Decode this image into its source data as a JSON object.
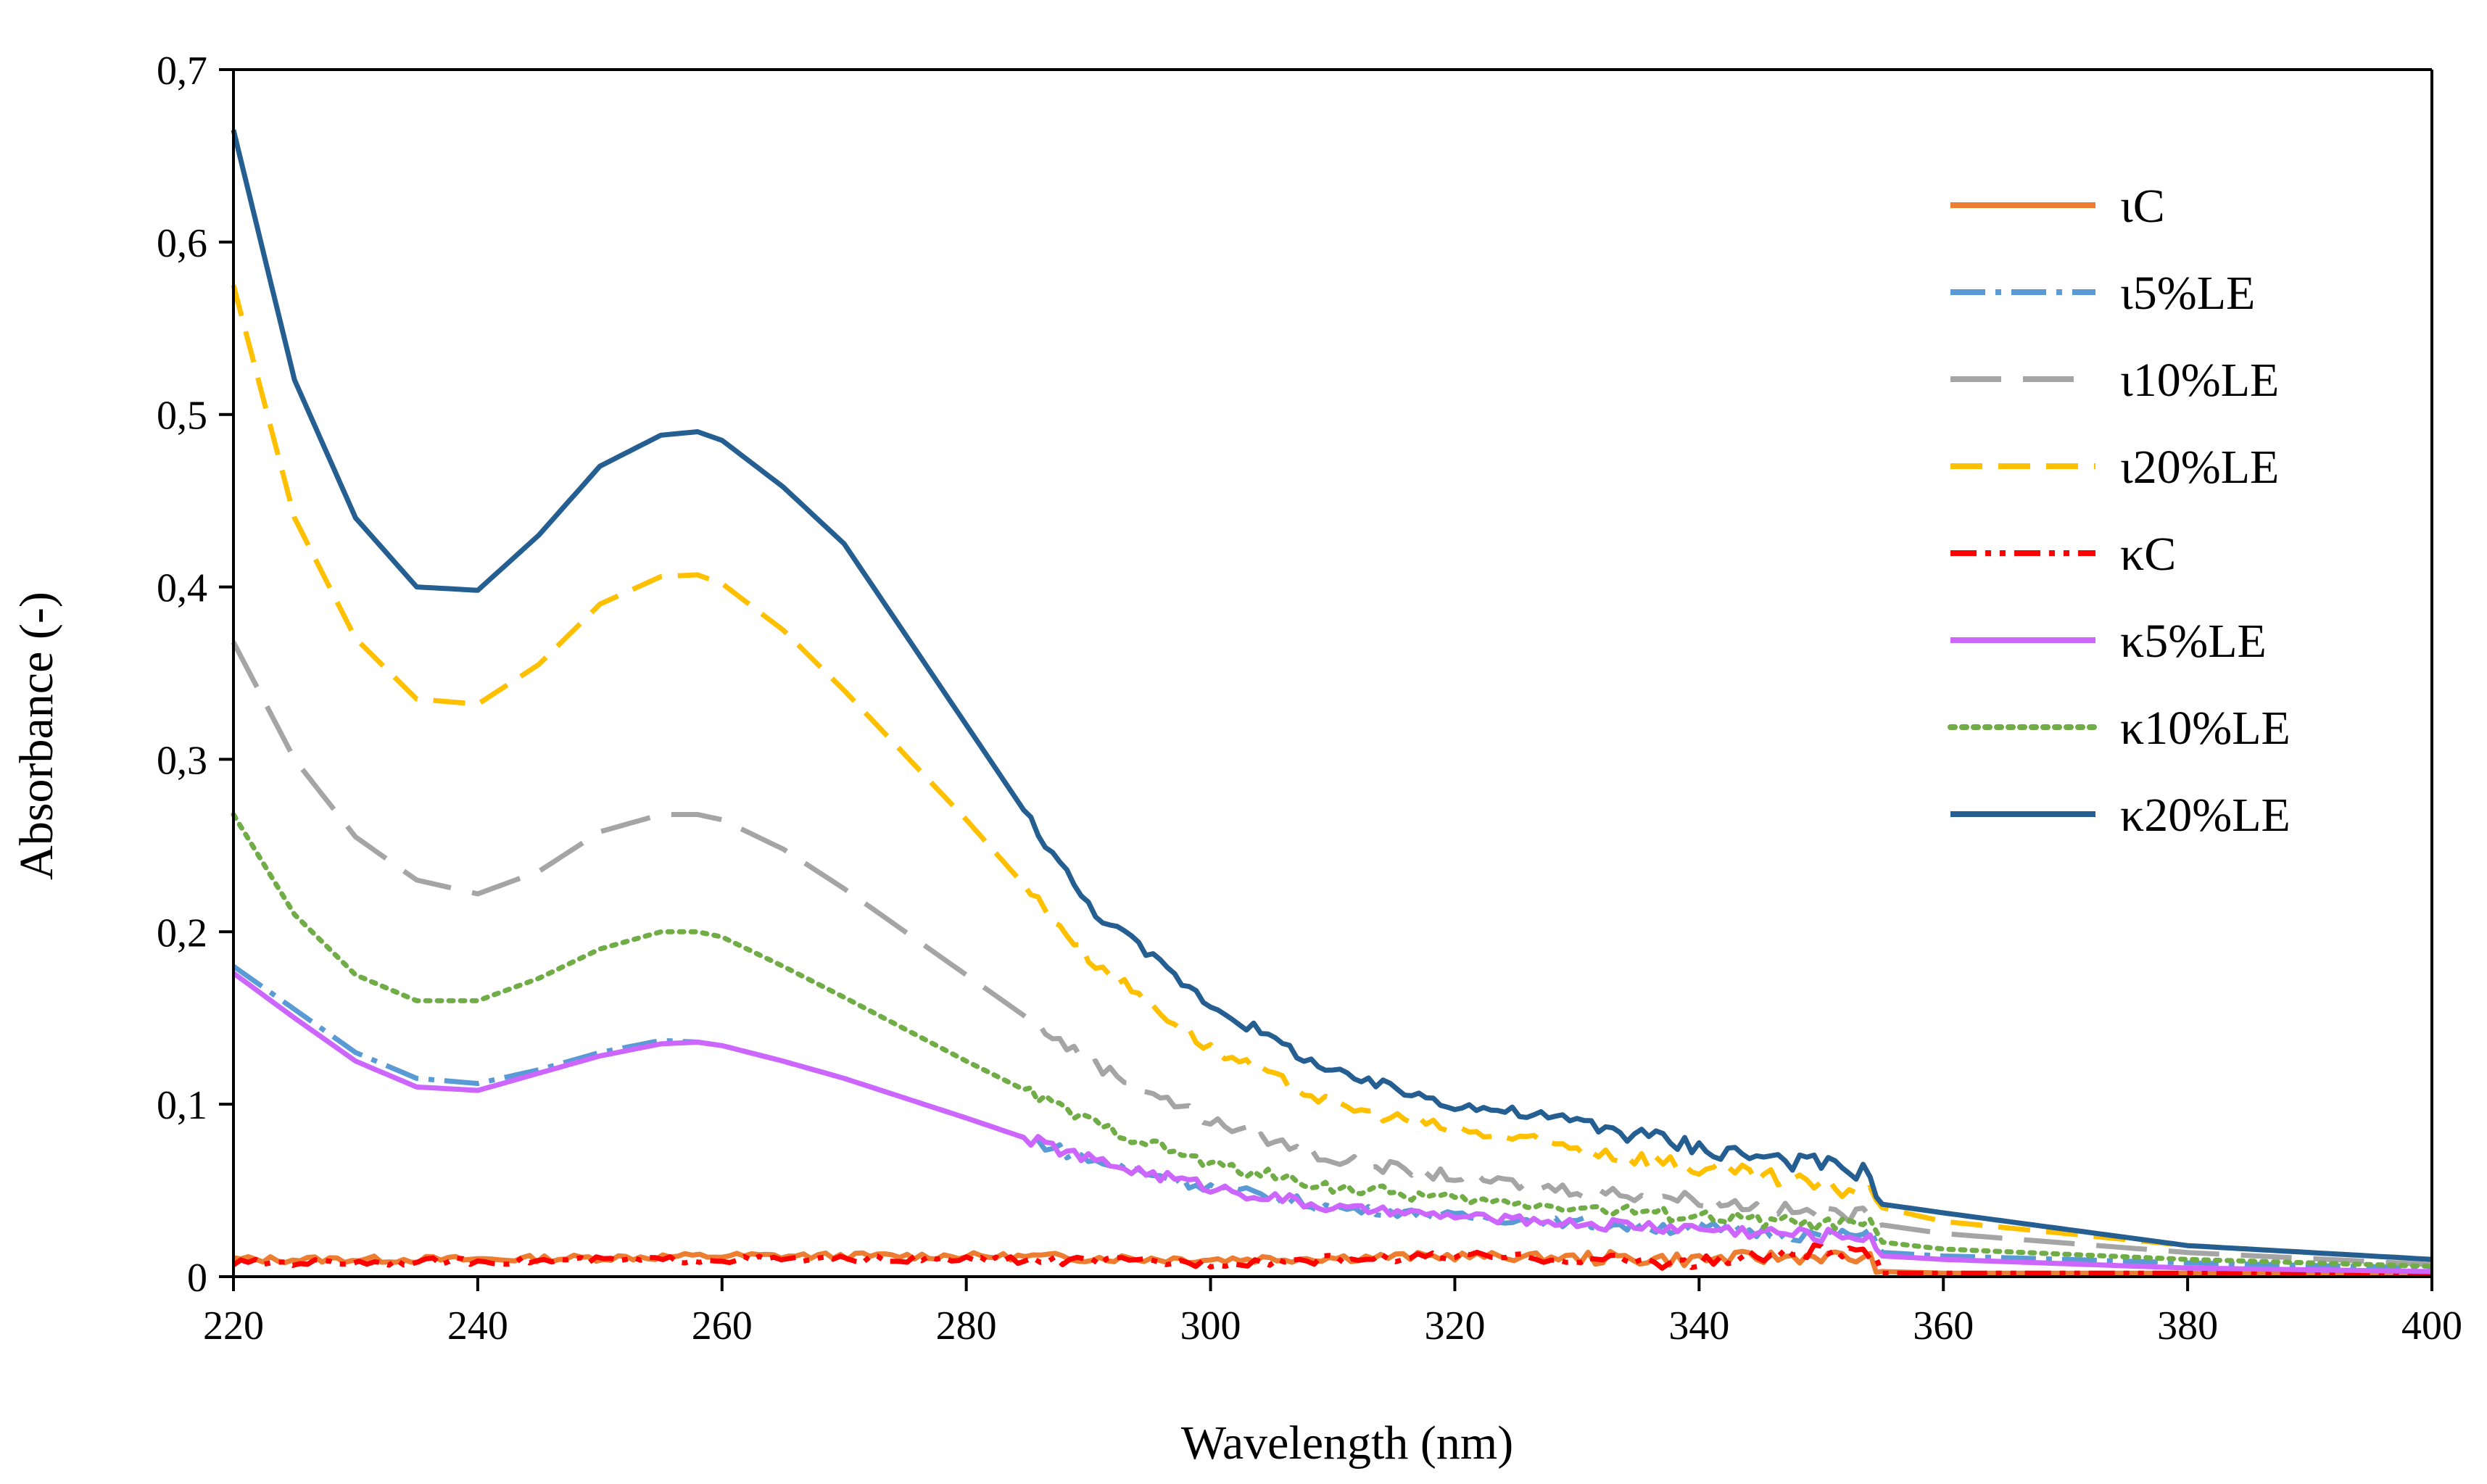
{
  "chart_data": {
    "type": "line",
    "title": "",
    "xlabel": "Wavelength (nm)",
    "ylabel": "Absorbance (-)",
    "xlim": [
      220,
      400
    ],
    "ylim": [
      0,
      0.7
    ],
    "x_ticks": [
      "220",
      "240",
      "260",
      "280",
      "300",
      "320",
      "340",
      "360",
      "380",
      "400"
    ],
    "y_ticks": [
      "0",
      "0,1",
      "0,2",
      "0,3",
      "0,4",
      "0,5",
      "0,6",
      "0,7"
    ],
    "grid": false,
    "legend_position": "top-right",
    "series": [
      {
        "name": "ιC",
        "color": "#ED7D31",
        "style": "solid",
        "x": [
          220,
          240,
          260,
          280,
          300,
          320,
          340,
          350,
          354,
          355,
          360,
          380,
          400
        ],
        "y": [
          0.01,
          0.01,
          0.012,
          0.012,
          0.01,
          0.012,
          0.01,
          0.012,
          0.01,
          0.003,
          0.002,
          0.002,
          0.002
        ]
      },
      {
        "name": "ι5%LE",
        "color": "#5B9BD5",
        "style": "dashdot",
        "x": [
          220,
          225,
          230,
          235,
          240,
          245,
          250,
          255,
          258,
          260,
          265,
          270,
          280,
          290,
          300,
          310,
          320,
          330,
          340,
          350,
          354,
          355,
          360,
          380,
          400
        ],
        "y": [
          0.18,
          0.155,
          0.13,
          0.115,
          0.112,
          0.12,
          0.13,
          0.137,
          0.136,
          0.134,
          0.125,
          0.115,
          0.092,
          0.068,
          0.052,
          0.04,
          0.035,
          0.031,
          0.028,
          0.024,
          0.024,
          0.014,
          0.012,
          0.008,
          0.005
        ]
      },
      {
        "name": "ι10%LE",
        "color": "#A5A5A5",
        "style": "longdash",
        "x": [
          220,
          225,
          230,
          235,
          240,
          245,
          250,
          255,
          258,
          260,
          265,
          270,
          280,
          290,
          300,
          310,
          320,
          330,
          340,
          350,
          354,
          355,
          360,
          380,
          400
        ],
        "y": [
          0.368,
          0.3,
          0.255,
          0.23,
          0.222,
          0.235,
          0.258,
          0.268,
          0.268,
          0.265,
          0.248,
          0.225,
          0.175,
          0.125,
          0.09,
          0.068,
          0.058,
          0.05,
          0.045,
          0.036,
          0.036,
          0.03,
          0.025,
          0.014,
          0.007
        ]
      },
      {
        "name": "ι20%LE",
        "color": "#FFC000",
        "style": "dash",
        "x": [
          220,
          225,
          230,
          235,
          240,
          245,
          250,
          255,
          258,
          260,
          265,
          270,
          280,
          290,
          300,
          310,
          320,
          330,
          340,
          350,
          354,
          355,
          360,
          380,
          400
        ],
        "y": [
          0.575,
          0.44,
          0.37,
          0.335,
          0.332,
          0.355,
          0.39,
          0.406,
          0.407,
          0.402,
          0.375,
          0.34,
          0.265,
          0.185,
          0.132,
          0.1,
          0.085,
          0.075,
          0.063,
          0.052,
          0.05,
          0.04,
          0.032,
          0.018,
          0.01
        ]
      },
      {
        "name": "κC",
        "color": "#FF0000",
        "style": "dashdotdot",
        "x": [
          220,
          240,
          260,
          280,
          300,
          320,
          340,
          350,
          354,
          355,
          360,
          380,
          400
        ],
        "y": [
          0.008,
          0.009,
          0.01,
          0.01,
          0.008,
          0.012,
          0.008,
          0.015,
          0.012,
          0.002,
          0.002,
          0.002,
          0.002
        ]
      },
      {
        "name": "κ5%LE",
        "color": "#CC66FF",
        "style": "solid",
        "x": [
          220,
          225,
          230,
          235,
          240,
          245,
          250,
          255,
          258,
          260,
          265,
          270,
          280,
          290,
          300,
          310,
          320,
          330,
          340,
          350,
          354,
          355,
          360,
          380,
          400
        ],
        "y": [
          0.176,
          0.15,
          0.125,
          0.11,
          0.108,
          0.118,
          0.128,
          0.135,
          0.136,
          0.134,
          0.125,
          0.115,
          0.092,
          0.068,
          0.052,
          0.04,
          0.035,
          0.031,
          0.028,
          0.024,
          0.024,
          0.012,
          0.01,
          0.005,
          0.003
        ]
      },
      {
        "name": "κ10%LE",
        "color": "#70AD47",
        "style": "dot",
        "x": [
          220,
          225,
          230,
          235,
          240,
          245,
          250,
          255,
          258,
          260,
          265,
          270,
          280,
          290,
          300,
          310,
          320,
          330,
          340,
          350,
          354,
          355,
          360,
          380,
          400
        ],
        "y": [
          0.268,
          0.21,
          0.175,
          0.16,
          0.16,
          0.173,
          0.19,
          0.2,
          0.2,
          0.197,
          0.18,
          0.162,
          0.125,
          0.09,
          0.065,
          0.052,
          0.045,
          0.04,
          0.035,
          0.03,
          0.03,
          0.02,
          0.016,
          0.01,
          0.006
        ]
      },
      {
        "name": "κ20%LE",
        "color": "#255E91",
        "style": "solid",
        "x": [
          220,
          225,
          230,
          235,
          240,
          245,
          250,
          255,
          258,
          260,
          265,
          270,
          280,
          290,
          300,
          310,
          320,
          330,
          340,
          350,
          354,
          355,
          360,
          380,
          400
        ],
        "y": [
          0.665,
          0.52,
          0.44,
          0.4,
          0.398,
          0.43,
          0.47,
          0.488,
          0.49,
          0.485,
          0.458,
          0.425,
          0.32,
          0.215,
          0.158,
          0.118,
          0.1,
          0.09,
          0.075,
          0.065,
          0.06,
          0.042,
          0.037,
          0.018,
          0.01
        ]
      }
    ]
  }
}
